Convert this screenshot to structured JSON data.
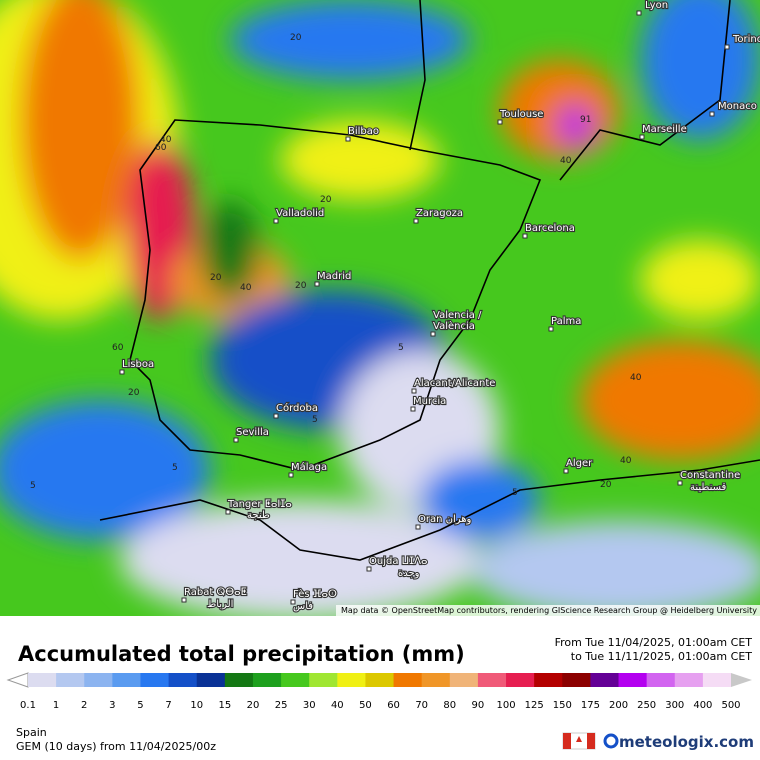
{
  "map": {
    "cities": [
      "Lyon",
      "Torino",
      "Monaco",
      "Toulouse",
      "Marseille",
      "Bilbao",
      "Valladolid",
      "Zaragoza",
      "Barcelona",
      "Madrid",
      "Valencia /",
      "València",
      "Palma",
      "Lisboa",
      "Alacant/Alicante",
      "Murcia",
      "Córdoba",
      "Sevilla",
      "Málaga",
      "Alger",
      "Constantine",
      "قسنطينة",
      "Tanger ⵟⴰⵏⵊⴰ",
      "طنجة",
      "Oran وهران",
      "Oujda ⵡⵊⴷⴰ",
      "وجدة",
      "Rabat ⵕⴱⴰⵟ",
      "الرباط",
      "Fès ⴼⴰⵙ",
      "فاس"
    ],
    "contour_labels": [
      "20",
      "40",
      "60",
      "20",
      "40",
      "20",
      "20",
      "40",
      "60",
      "20",
      "5",
      "5",
      "5",
      "5",
      "40",
      "40",
      "20",
      "5",
      "91"
    ],
    "attribution": "Map data © OpenStreetMap contributors, rendering GIScience Research Group @ Heidelberg University"
  },
  "header": {
    "title": "Accumulated total precipitation (mm)",
    "from": "From Tue 11/04/2025, 01:00am CET",
    "to": "to Tue 11/11/2025, 01:00am CET"
  },
  "legend": {
    "labels": [
      "0.1",
      "1",
      "2",
      "3",
      "5",
      "7",
      "10",
      "15",
      "20",
      "25",
      "30",
      "40",
      "50",
      "60",
      "70",
      "80",
      "90",
      "100",
      "125",
      "150",
      "175",
      "200",
      "250",
      "300",
      "400",
      "500"
    ],
    "colors": [
      "#dcdcf0",
      "#b4c8f0",
      "#8cb4f0",
      "#5a9bf0",
      "#2878f0",
      "#1450c8",
      "#0a3296",
      "#147814",
      "#1ea01e",
      "#46c81e",
      "#a0e632",
      "#f0f014",
      "#dcc800",
      "#f07800",
      "#f09628",
      "#f0b478",
      "#f05a78",
      "#e61e50",
      "#b40000",
      "#8c0000",
      "#640096",
      "#b400f0",
      "#d264f0",
      "#e6a0f0",
      "#f5dcf5",
      "#c8c8c8"
    ]
  },
  "footer": {
    "region": "Spain",
    "model": "GEM (10 days) from 11/04/2025/00z",
    "brand": "meteologix.com"
  }
}
